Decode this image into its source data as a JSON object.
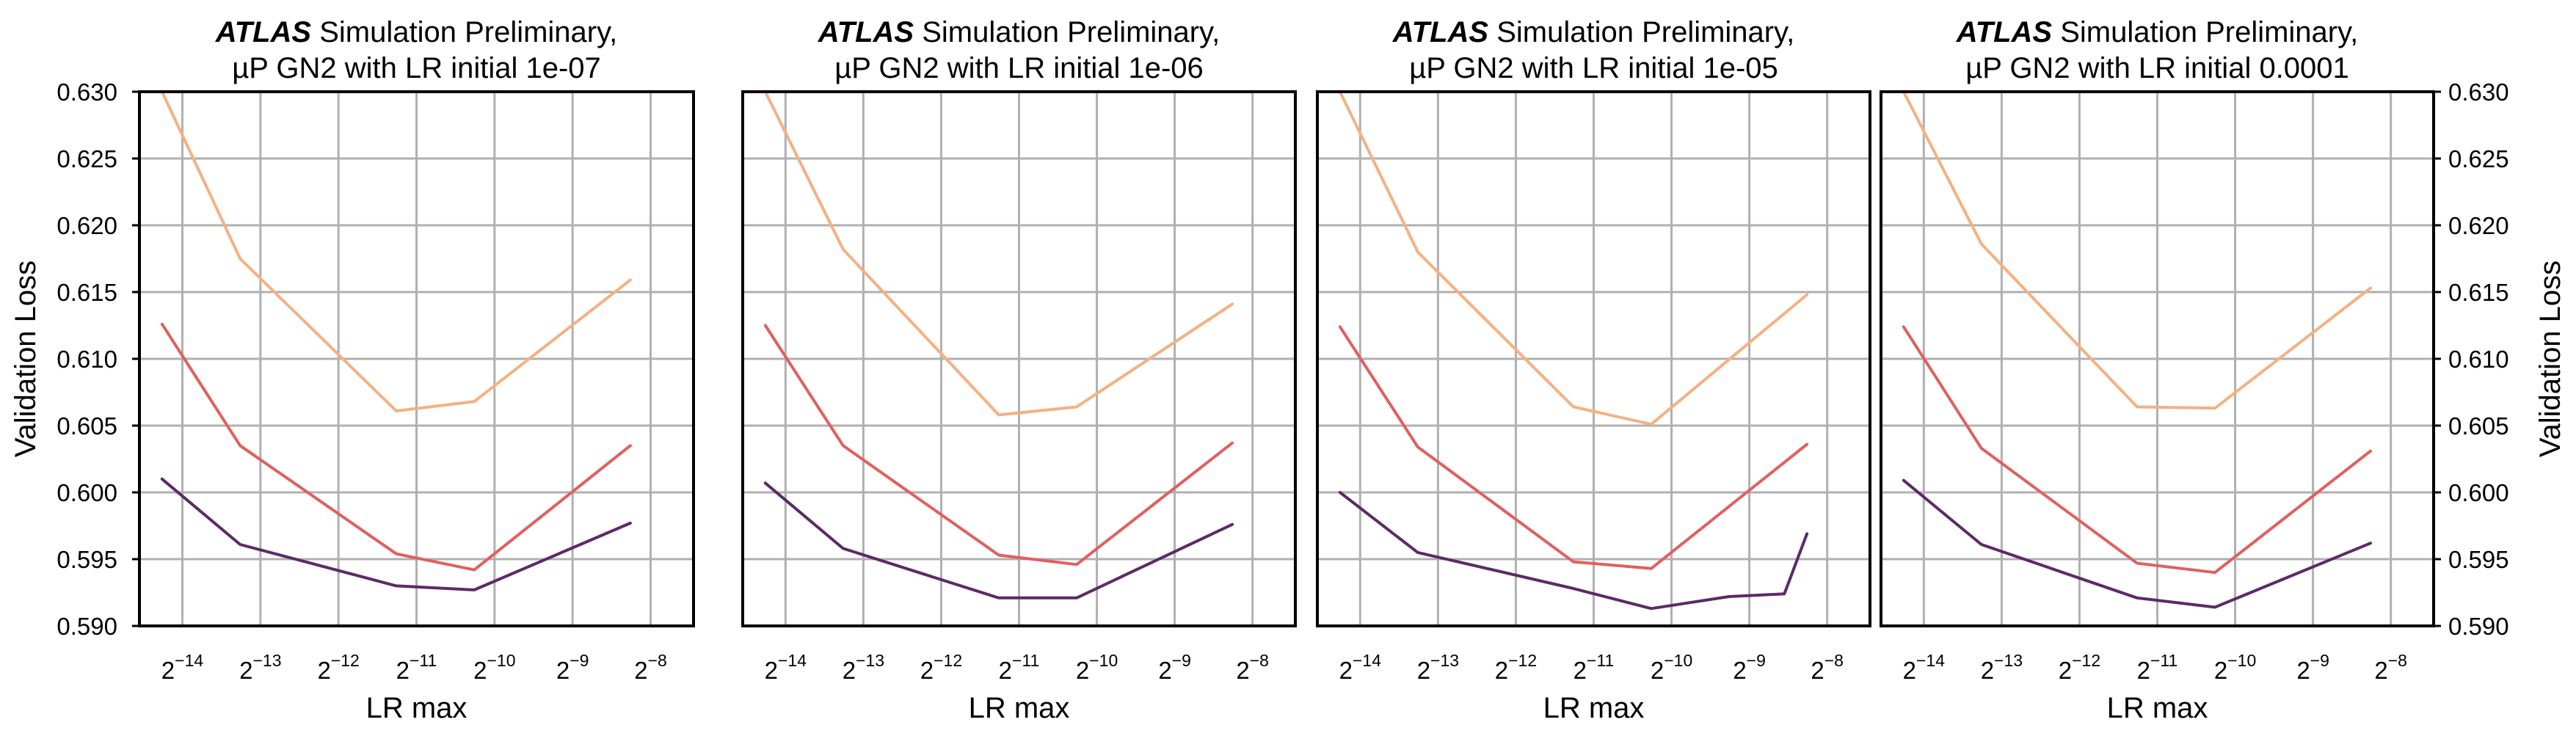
{
  "chart_data": [
    {
      "type": "line",
      "title_bold": "ATLAS",
      "title_line1": " Simulation Preliminary,",
      "title_line2": "µP GN2 with LR initial 1e-07",
      "xlabel": "LR max",
      "ylabel": "Validation Loss",
      "xscale": "log2",
      "xlim_exponent": [
        -14.55,
        -7.45
      ],
      "ylim": [
        0.59,
        0.63
      ],
      "ytick_labels": [
        "0.590",
        "0.595",
        "0.600",
        "0.605",
        "0.610",
        "0.615",
        "0.620",
        "0.625",
        "0.630"
      ],
      "y_axis_side": "left",
      "grid": true,
      "series": [
        {
          "color": "#f4b183",
          "x_exponent": [
            -14.26,
            -13.26,
            -11.26,
            -10.26,
            -8.26
          ],
          "y": [
            0.63,
            0.6175,
            0.6061,
            0.6068,
            0.6159
          ]
        },
        {
          "color": "#e0605f",
          "x_exponent": [
            -14.26,
            -13.26,
            -11.26,
            -10.26,
            -8.26
          ],
          "y": [
            0.6126,
            0.6035,
            0.5954,
            0.5942,
            0.6035
          ]
        },
        {
          "color": "#5c2a66",
          "x_exponent": [
            -14.26,
            -13.26,
            -11.26,
            -10.26,
            -8.26
          ],
          "y": [
            0.601,
            0.5961,
            0.593,
            0.5927,
            0.5977
          ]
        }
      ]
    },
    {
      "type": "line",
      "title_bold": "ATLAS",
      "title_line1": " Simulation Preliminary,",
      "title_line2": "µP GN2 with LR initial 1e-06",
      "xlabel": "LR max",
      "ylabel": "",
      "xscale": "log2",
      "xlim_exponent": [
        -14.55,
        -7.45
      ],
      "ylim": [
        0.59,
        0.63
      ],
      "ytick_labels": [],
      "y_axis_side": "none",
      "grid": true,
      "series": [
        {
          "color": "#f4b183",
          "x_exponent": [
            -14.26,
            -13.26,
            -11.26,
            -10.26,
            -8.26
          ],
          "y": [
            0.63,
            0.6182,
            0.6058,
            0.6064,
            0.6141
          ]
        },
        {
          "color": "#e0605f",
          "x_exponent": [
            -14.26,
            -13.26,
            -11.26,
            -10.26,
            -8.26
          ],
          "y": [
            0.6125,
            0.6035,
            0.5953,
            0.5946,
            0.6037
          ]
        },
        {
          "color": "#5c2a66",
          "x_exponent": [
            -14.26,
            -13.26,
            -11.26,
            -10.26,
            -8.26
          ],
          "y": [
            0.6007,
            0.5958,
            0.5921,
            0.5921,
            0.5976
          ]
        }
      ]
    },
    {
      "type": "line",
      "title_bold": "ATLAS",
      "title_line1": " Simulation Preliminary,",
      "title_line2": "µP GN2 with LR initial 1e-05",
      "xlabel": "LR max",
      "ylabel": "",
      "xscale": "log2",
      "xlim_exponent": [
        -14.55,
        -7.45
      ],
      "ylim": [
        0.59,
        0.63
      ],
      "ytick_labels": [],
      "y_axis_side": "none",
      "grid": true,
      "series": [
        {
          "color": "#f4b183",
          "x_exponent": [
            -14.26,
            -13.26,
            -11.26,
            -10.26,
            -8.26
          ],
          "y": [
            0.63,
            0.618,
            0.6064,
            0.6051,
            0.6148
          ]
        },
        {
          "color": "#e0605f",
          "x_exponent": [
            -14.26,
            -13.26,
            -11.26,
            -10.26,
            -8.26
          ],
          "y": [
            0.6124,
            0.6034,
            0.5948,
            0.5943,
            0.6036
          ]
        },
        {
          "color": "#5c2a66",
          "x_exponent": [
            -14.26,
            -13.26,
            -11.26,
            -10.26,
            -9.26,
            -8.55,
            -8.26
          ],
          "y": [
            0.6,
            0.5955,
            0.5928,
            0.5913,
            0.5922,
            0.5924,
            0.5969
          ]
        }
      ]
    },
    {
      "type": "line",
      "title_bold": "ATLAS",
      "title_line1": " Simulation Preliminary,",
      "title_line2": "µP GN2 with LR initial 0.0001",
      "xlabel": "LR max",
      "ylabel": "Validation Loss",
      "xscale": "log2",
      "xlim_exponent": [
        -14.55,
        -7.45
      ],
      "ylim": [
        0.59,
        0.63
      ],
      "ytick_labels": [
        "0.590",
        "0.595",
        "0.600",
        "0.605",
        "0.610",
        "0.615",
        "0.620",
        "0.625",
        "0.630"
      ],
      "y_axis_side": "right",
      "grid": true,
      "series": [
        {
          "color": "#f4b183",
          "x_exponent": [
            -14.26,
            -13.26,
            -11.26,
            -10.26,
            -8.26
          ],
          "y": [
            0.63,
            0.6186,
            0.6064,
            0.6063,
            0.6153
          ]
        },
        {
          "color": "#e0605f",
          "x_exponent": [
            -14.26,
            -13.26,
            -11.26,
            -10.26,
            -8.26
          ],
          "y": [
            0.6124,
            0.6033,
            0.5947,
            0.594,
            0.6031
          ]
        },
        {
          "color": "#5c2a66",
          "x_exponent": [
            -14.26,
            -13.26,
            -11.26,
            -10.26,
            -8.26
          ],
          "y": [
            0.6009,
            0.5961,
            0.5921,
            0.5914,
            0.5962
          ]
        }
      ]
    }
  ],
  "xtick_base": "2",
  "xtick_exponents": [
    "−14",
    "−13",
    "−12",
    "−11",
    "−10",
    "−9",
    "−8"
  ]
}
